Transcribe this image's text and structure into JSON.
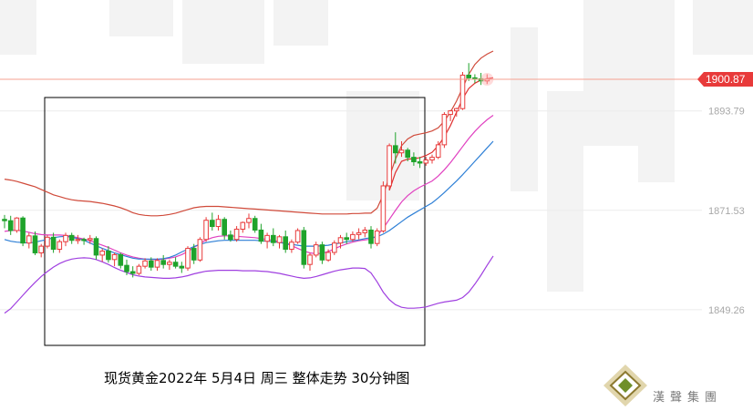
{
  "caption": "现货黄金2022年 5月4日 周三 整体走势 30分钟图",
  "brand": "漢聲集團",
  "last_price": "1900.87",
  "colors": {
    "up": "#e83a3a",
    "down": "#1fa32b",
    "ma_blue": "#2d7fd6",
    "band_upper": "#d04a3a",
    "band_mid": "#e03030",
    "band_inner": "#e040c0",
    "band_lower": "#a040e0",
    "last_line": "#f4a090"
  },
  "chart_data": {
    "type": "candlestick",
    "y_ticks": [
      {
        "label": "1893.79",
        "value": 1893.79
      },
      {
        "label": "1871.53",
        "value": 1871.53
      },
      {
        "label": "1849.26",
        "value": 1849.26
      }
    ],
    "ylim": [
      1843.0,
      1907.0
    ],
    "last_value": 1900.87,
    "candles": [
      [
        1869.5,
        1870.5,
        1867.5,
        1869.2
      ],
      [
        1869.2,
        1870.3,
        1866.0,
        1867.0
      ],
      [
        1867.0,
        1870.0,
        1866.5,
        1869.8
      ],
      [
        1869.8,
        1870.2,
        1863.5,
        1864.2
      ],
      [
        1864.2,
        1866.5,
        1863.0,
        1865.8
      ],
      [
        1865.8,
        1866.8,
        1861.5,
        1862.0
      ],
      [
        1862.0,
        1864.0,
        1861.0,
        1863.5
      ],
      [
        1863.5,
        1866.0,
        1863.0,
        1865.5
      ],
      [
        1865.5,
        1866.5,
        1862.0,
        1862.8
      ],
      [
        1862.8,
        1865.0,
        1862.0,
        1864.5
      ],
      [
        1864.5,
        1866.5,
        1863.5,
        1865.9
      ],
      [
        1865.9,
        1866.5,
        1864.0,
        1864.8
      ],
      [
        1864.8,
        1866.0,
        1864.0,
        1865.0
      ],
      [
        1865.0,
        1865.4,
        1863.8,
        1864.9
      ],
      [
        1864.9,
        1866.0,
        1864.0,
        1865.2
      ],
      [
        1865.2,
        1865.7,
        1860.5,
        1861.5
      ],
      [
        1861.5,
        1863.0,
        1860.0,
        1862.4
      ],
      [
        1862.4,
        1863.5,
        1859.8,
        1860.5
      ],
      [
        1860.5,
        1862.0,
        1859.0,
        1861.6
      ],
      [
        1861.6,
        1862.0,
        1858.5,
        1859.2
      ],
      [
        1859.2,
        1860.5,
        1857.0,
        1857.8
      ],
      [
        1857.8,
        1859.0,
        1856.5,
        1857.4
      ],
      [
        1857.4,
        1859.5,
        1857.0,
        1859.0
      ],
      [
        1859.0,
        1860.8,
        1858.5,
        1860.2
      ],
      [
        1860.2,
        1861.0,
        1858.0,
        1858.8
      ],
      [
        1858.8,
        1860.8,
        1858.0,
        1860.3
      ],
      [
        1860.3,
        1861.5,
        1858.5,
        1859.4
      ],
      [
        1859.4,
        1860.5,
        1858.2,
        1859.9
      ],
      [
        1859.9,
        1861.0,
        1858.5,
        1859.0
      ],
      [
        1859.0,
        1860.0,
        1857.5,
        1858.6
      ],
      [
        1858.6,
        1863.5,
        1858.0,
        1863.0
      ],
      [
        1863.0,
        1864.0,
        1859.5,
        1860.4
      ],
      [
        1860.4,
        1865.5,
        1860.0,
        1865.0
      ],
      [
        1865.0,
        1870.0,
        1864.5,
        1869.3
      ],
      [
        1869.3,
        1871.0,
        1867.0,
        1867.9
      ],
      [
        1867.9,
        1870.5,
        1867.0,
        1869.5
      ],
      [
        1869.5,
        1870.0,
        1865.0,
        1866.0
      ],
      [
        1866.0,
        1867.0,
        1864.5,
        1865.0
      ],
      [
        1865.0,
        1868.0,
        1864.5,
        1867.3
      ],
      [
        1867.3,
        1869.0,
        1866.5,
        1868.8
      ],
      [
        1868.8,
        1870.8,
        1867.5,
        1869.7
      ],
      [
        1869.7,
        1870.3,
        1866.5,
        1867.1
      ],
      [
        1867.1,
        1868.5,
        1864.0,
        1864.6
      ],
      [
        1864.6,
        1866.5,
        1863.0,
        1865.9
      ],
      [
        1865.9,
        1867.5,
        1863.5,
        1864.3
      ],
      [
        1864.3,
        1866.0,
        1863.0,
        1865.6
      ],
      [
        1865.6,
        1867.0,
        1862.0,
        1862.8
      ],
      [
        1862.8,
        1865.0,
        1862.0,
        1864.4
      ],
      [
        1864.4,
        1867.5,
        1864.0,
        1867.0
      ],
      [
        1867.0,
        1867.8,
        1858.5,
        1859.4
      ],
      [
        1859.4,
        1862.0,
        1858.0,
        1861.5
      ],
      [
        1861.5,
        1864.5,
        1861.0,
        1863.8
      ],
      [
        1863.8,
        1864.5,
        1859.5,
        1860.4
      ],
      [
        1860.4,
        1862.8,
        1860.0,
        1862.1
      ],
      [
        1862.1,
        1864.8,
        1861.5,
        1864.2
      ],
      [
        1864.2,
        1866.0,
        1863.0,
        1865.4
      ],
      [
        1865.4,
        1866.5,
        1864.0,
        1865.0
      ],
      [
        1865.0,
        1866.8,
        1864.5,
        1866.1
      ],
      [
        1866.1,
        1867.5,
        1865.0,
        1866.5
      ],
      [
        1866.5,
        1867.8,
        1865.5,
        1867.1
      ],
      [
        1867.1,
        1868.0,
        1863.0,
        1864.1
      ],
      [
        1864.1,
        1867.5,
        1863.5,
        1866.9
      ],
      [
        1866.9,
        1878.0,
        1866.5,
        1877.0
      ],
      [
        1877.0,
        1886.5,
        1876.0,
        1886.0
      ],
      [
        1886.0,
        1889.0,
        1882.0,
        1884.4
      ],
      [
        1884.4,
        1887.0,
        1883.5,
        1885.0
      ],
      [
        1885.0,
        1885.5,
        1882.5,
        1883.4
      ],
      [
        1883.4,
        1884.5,
        1881.5,
        1882.4
      ],
      [
        1882.4,
        1883.5,
        1881.0,
        1882.1
      ],
      [
        1882.1,
        1883.5,
        1881.5,
        1882.8
      ],
      [
        1882.8,
        1884.0,
        1882.0,
        1883.4
      ],
      [
        1883.4,
        1887.0,
        1883.0,
        1886.2
      ],
      [
        1886.2,
        1893.5,
        1885.5,
        1893.0
      ],
      [
        1893.0,
        1894.0,
        1891.5,
        1893.8
      ],
      [
        1893.8,
        1894.5,
        1892.5,
        1894.3
      ],
      [
        1894.3,
        1902.5,
        1894.0,
        1901.8
      ],
      [
        1901.8,
        1904.5,
        1900.5,
        1901.2
      ],
      [
        1901.2,
        1902.0,
        1900.0,
        1901.0
      ],
      [
        1901.0,
        1902.3,
        1899.6,
        1900.5
      ],
      [
        1900.5,
        1902.0,
        1899.8,
        1900.87
      ]
    ],
    "x_start": 5,
    "x_step": 6.7,
    "ma_blue": [
      1865.0,
      1864.6,
      1864.4,
      1864.3,
      1864.2,
      1864.4,
      1864.7,
      1865.0,
      1865.4,
      1865.6,
      1865.7,
      1865.5,
      1865.2,
      1864.8,
      1864.2,
      1863.6,
      1863.0,
      1862.5,
      1862.0,
      1861.6,
      1861.2,
      1860.8,
      1860.6,
      1860.6,
      1860.6,
      1860.6,
      1860.7,
      1861.0,
      1861.5,
      1862.2,
      1862.8,
      1863.4,
      1863.9,
      1864.3,
      1864.5,
      1864.7,
      1864.8,
      1864.8,
      1864.8,
      1864.8,
      1864.8,
      1864.8,
      1864.7,
      1864.6,
      1864.5,
      1864.3,
      1864.1,
      1863.9,
      1863.7,
      1863.5,
      1863.5,
      1863.5,
      1863.6,
      1863.7,
      1864.0,
      1864.2,
      1864.5,
      1864.7,
      1864.9,
      1865.2,
      1865.4,
      1865.6,
      1866.2,
      1867.0,
      1868.0,
      1869.0,
      1870.0,
      1870.8,
      1871.6,
      1872.4,
      1873.2,
      1874.3,
      1875.5,
      1876.8,
      1878.1,
      1879.5,
      1881.0,
      1882.5,
      1884.0,
      1885.5,
      1887.0
    ],
    "band_upper": [
      1878.5,
      1878.3,
      1878.0,
      1877.6,
      1877.2,
      1876.8,
      1876.2,
      1875.6,
      1875.0,
      1874.6,
      1874.2,
      1873.9,
      1873.7,
      1873.6,
      1873.5,
      1873.3,
      1873.1,
      1872.8,
      1872.5,
      1872.1,
      1871.6,
      1871.0,
      1870.6,
      1870.4,
      1870.3,
      1870.3,
      1870.4,
      1870.6,
      1870.9,
      1871.3,
      1871.7,
      1872.1,
      1872.3,
      1872.4,
      1872.4,
      1872.4,
      1872.3,
      1872.2,
      1872.1,
      1872.0,
      1871.9,
      1871.8,
      1871.7,
      1871.6,
      1871.5,
      1871.4,
      1871.3,
      1871.2,
      1871.1,
      1871.0,
      1870.9,
      1870.8,
      1870.7,
      1870.7,
      1870.7,
      1870.7,
      1870.7,
      1870.8,
      1870.8,
      1870.9,
      1870.9,
      1872.0,
      1875.0,
      1879.0,
      1883.0,
      1886.0,
      1887.5,
      1888.3,
      1888.6,
      1888.9,
      1889.3,
      1890.0,
      1891.5,
      1893.5,
      1896.0,
      1899.0,
      1902.0,
      1904.2,
      1905.6,
      1906.5,
      1907.2
    ],
    "band_mid": [
      null,
      null,
      null,
      null,
      null,
      null,
      null,
      null,
      null,
      null,
      null,
      null,
      null,
      null,
      null,
      null,
      null,
      null,
      null,
      null,
      null,
      null,
      null,
      null,
      null,
      null,
      null,
      null,
      null,
      null,
      null,
      null,
      null,
      null,
      null,
      null,
      null,
      null,
      null,
      null,
      null,
      null,
      null,
      null,
      null,
      null,
      null,
      null,
      null,
      null,
      null,
      null,
      null,
      null,
      null,
      null,
      null,
      null,
      null,
      null,
      null,
      null,
      null,
      1876.0,
      1880.0,
      1882.5,
      1883.0,
      1883.1,
      1883.3,
      1883.8,
      1884.5,
      1886.0,
      1888.0,
      1890.5,
      1893.5,
      1896.5,
      1898.8,
      1900.0,
      1900.7,
      1901.0,
      1901.2
    ],
    "band_inner": [
      1866.8,
      1867.0,
      1867.1,
      1866.9,
      1866.6,
      1866.3,
      1866.1,
      1866.0,
      1866.0,
      1866.0,
      1865.9,
      1865.7,
      1865.4,
      1865.1,
      1864.7,
      1864.2,
      1863.7,
      1863.2,
      1862.6,
      1862.0,
      1861.5,
      1861.1,
      1860.8,
      1860.6,
      1860.5,
      1860.5,
      1860.6,
      1860.8,
      1861.1,
      1861.6,
      1862.3,
      1863.2,
      1864.1,
      1864.9,
      1865.4,
      1865.7,
      1865.8,
      1865.8,
      1865.7,
      1865.6,
      1865.5,
      1865.4,
      1865.2,
      1865.0,
      1864.8,
      1864.5,
      1864.1,
      1863.6,
      1863.0,
      1862.4,
      1862.0,
      1861.8,
      1861.9,
      1862.3,
      1862.9,
      1863.5,
      1864.0,
      1864.4,
      1864.7,
      1864.9,
      1865.1,
      1865.8,
      1867.5,
      1869.5,
      1871.5,
      1873.4,
      1874.8,
      1875.9,
      1876.7,
      1877.4,
      1878.1,
      1879.2,
      1880.6,
      1882.2,
      1884.0,
      1885.8,
      1887.6,
      1889.2,
      1890.6,
      1891.8,
      1892.8
    ],
    "band_lower": [
      1848.5,
      1849.5,
      1851.0,
      1852.5,
      1854.0,
      1855.4,
      1856.7,
      1857.8,
      1858.8,
      1859.6,
      1860.2,
      1860.6,
      1860.8,
      1860.9,
      1860.8,
      1860.5,
      1860.0,
      1859.4,
      1858.7,
      1858.1,
      1857.6,
      1857.1,
      1856.8,
      1856.6,
      1856.5,
      1856.4,
      1856.3,
      1856.3,
      1856.4,
      1856.6,
      1856.9,
      1857.3,
      1857.6,
      1857.9,
      1858.0,
      1858.1,
      1858.1,
      1858.1,
      1858.1,
      1858.0,
      1858.0,
      1858.0,
      1857.9,
      1857.8,
      1857.6,
      1857.4,
      1857.1,
      1856.8,
      1856.5,
      1856.3,
      1856.4,
      1856.7,
      1857.1,
      1857.5,
      1857.9,
      1858.2,
      1858.4,
      1858.6,
      1858.6,
      1858.5,
      1857.5,
      1855.5,
      1853.2,
      1851.5,
      1850.4,
      1849.8,
      1849.6,
      1849.6,
      1849.7,
      1849.9,
      1850.3,
      1850.7,
      1851.0,
      1851.2,
      1851.4,
      1852.0,
      1853.2,
      1855.0,
      1857.0,
      1859.2,
      1861.3
    ]
  }
}
